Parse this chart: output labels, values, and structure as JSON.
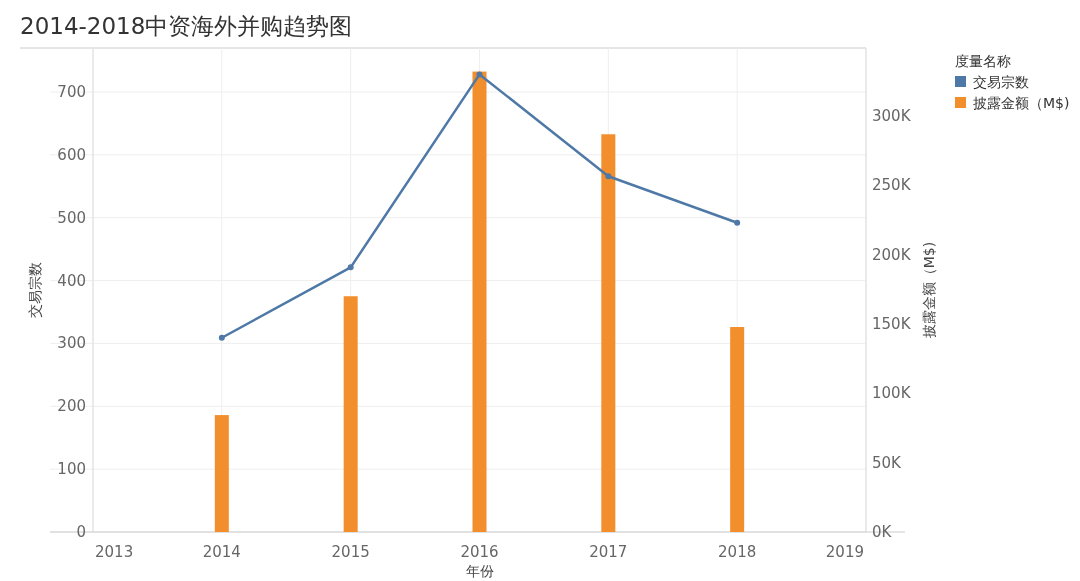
{
  "chart_data": {
    "type": "bar",
    "title": "2014-2018中资海外并购趋势图",
    "xlabel": "年份",
    "ylabel": "交易宗数",
    "y2label": "披露金额（M$)",
    "legend_title": "度量名称",
    "x": [
      2014,
      2015,
      2016,
      2017,
      2018
    ],
    "series": [
      {
        "name": "交易宗数",
        "type": "line",
        "color": "#4e79a7",
        "axis": "y",
        "marker": "circle",
        "values": [
          309,
          421,
          728,
          566,
          492
        ]
      },
      {
        "name": "披露金额（M$)",
        "color": "#f28e2b",
        "axis": "y2",
        "values": [
          84300,
          170000,
          332000,
          286800,
          147800
        ]
      }
    ],
    "xlim": [
      2013,
      2019
    ],
    "xticks": [
      2013,
      2014,
      2015,
      2016,
      2017,
      2018,
      2019
    ],
    "ylim": [
      0,
      770
    ],
    "yticks": [
      0,
      100,
      200,
      300,
      400,
      500,
      600,
      700
    ],
    "y2lim": [
      0,
      349000
    ],
    "y2ticks": [
      {
        "value": 0,
        "label": "0K"
      },
      {
        "value": 50000,
        "label": "50K"
      },
      {
        "value": 100000,
        "label": "100K"
      },
      {
        "value": 150000,
        "label": "150K"
      },
      {
        "value": 200000,
        "label": "200K"
      },
      {
        "value": 250000,
        "label": "250K"
      },
      {
        "value": 300000,
        "label": "300K"
      }
    ],
    "grid": true,
    "legend": "top right"
  }
}
